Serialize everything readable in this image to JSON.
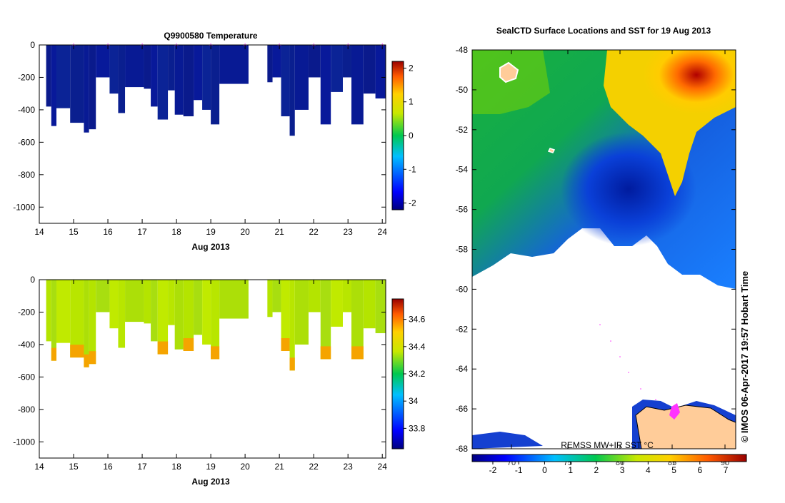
{
  "chart_data": [
    {
      "type": "heatmap",
      "variable": "temperature",
      "title": "Q9900580  Temperature",
      "xlabel": "Aug 2013",
      "x_ticks": [
        "14",
        "15",
        "16",
        "17",
        "18",
        "19",
        "20",
        "21",
        "22",
        "23",
        "24"
      ],
      "xlim": [
        14,
        24.1
      ],
      "ylim": [
        -1100,
        0
      ],
      "y_ticks": [
        "0",
        "-200",
        "-400",
        "-600",
        "-800",
        "-1000"
      ],
      "colorbar": {
        "range": [
          -2.2,
          2.2
        ],
        "ticks": [
          "2",
          "1",
          "0",
          "-1",
          "-2"
        ]
      },
      "profile_markers_day": [
        15.0,
        16.0,
        17.0,
        18.0,
        19.0,
        20.0,
        21.0,
        22.0,
        23.0,
        24.0
      ],
      "profiles": [
        {
          "start": 14.2,
          "end": 14.35,
          "depth": -380
        },
        {
          "start": 14.35,
          "end": 14.5,
          "depth": -500
        },
        {
          "start": 14.5,
          "end": 14.9,
          "depth": -390
        },
        {
          "start": 14.9,
          "end": 15.3,
          "depth": -480
        },
        {
          "start": 15.3,
          "end": 15.45,
          "depth": -540
        },
        {
          "start": 15.45,
          "end": 15.65,
          "depth": -520
        },
        {
          "start": 15.65,
          "end": 16.05,
          "depth": -200
        },
        {
          "start": 16.05,
          "end": 16.3,
          "depth": -300
        },
        {
          "start": 16.3,
          "end": 16.5,
          "depth": -420
        },
        {
          "start": 16.5,
          "end": 17.05,
          "depth": -260
        },
        {
          "start": 17.05,
          "end": 17.25,
          "depth": -270
        },
        {
          "start": 17.25,
          "end": 17.45,
          "depth": -380
        },
        {
          "start": 17.45,
          "end": 17.75,
          "depth": -460
        },
        {
          "start": 17.75,
          "end": 17.95,
          "depth": -280
        },
        {
          "start": 17.95,
          "end": 18.2,
          "depth": -430
        },
        {
          "start": 18.2,
          "end": 18.5,
          "depth": -440
        },
        {
          "start": 18.5,
          "end": 18.75,
          "depth": -340
        },
        {
          "start": 18.75,
          "end": 19.0,
          "depth": -400
        },
        {
          "start": 19.0,
          "end": 19.25,
          "depth": -490
        },
        {
          "start": 19.25,
          "end": 20.1,
          "depth": -240
        },
        {
          "start": 20.65,
          "end": 20.8,
          "depth": -230
        },
        {
          "start": 20.8,
          "end": 21.05,
          "depth": -200
        },
        {
          "start": 21.05,
          "end": 21.3,
          "depth": -440
        },
        {
          "start": 21.3,
          "end": 21.45,
          "depth": -560
        },
        {
          "start": 21.45,
          "end": 21.85,
          "depth": -400
        },
        {
          "start": 21.85,
          "end": 22.2,
          "depth": -200
        },
        {
          "start": 22.2,
          "end": 22.5,
          "depth": -490
        },
        {
          "start": 22.5,
          "end": 22.85,
          "depth": -290
        },
        {
          "start": 22.85,
          "end": 23.1,
          "depth": -200
        },
        {
          "start": 23.1,
          "end": 23.45,
          "depth": -490
        },
        {
          "start": 23.45,
          "end": 23.8,
          "depth": -300
        },
        {
          "start": 23.8,
          "end": 24.1,
          "depth": -330
        }
      ]
    },
    {
      "type": "heatmap",
      "variable": "salinity",
      "title": "",
      "xlabel": "Aug 2013",
      "x_ticks": [
        "14",
        "15",
        "16",
        "17",
        "18",
        "19",
        "20",
        "21",
        "22",
        "23",
        "24"
      ],
      "xlim": [
        14,
        24.1
      ],
      "ylim": [
        -1100,
        0
      ],
      "y_ticks": [
        "0",
        "-200",
        "-400",
        "-600",
        "-800",
        "-1000"
      ],
      "colorbar": {
        "range": [
          33.65,
          34.75
        ],
        "ticks": [
          "34.6",
          "34.4",
          "34.2",
          "34",
          "33.8"
        ]
      },
      "profiles_same_as_temperature": true
    },
    {
      "type": "heatmap",
      "variable": "sea surface temperature map",
      "title": "SealCTD Surface Locations and SST for 19 Aug 2013",
      "y_ticks": [
        "-48",
        "-50",
        "-52",
        "-54",
        "-56",
        "-58",
        "-60",
        "-62",
        "-64",
        "-66",
        "-68"
      ],
      "ylim": [
        -68,
        -48
      ],
      "x_ticks_top": [
        "70",
        "75",
        "80",
        "85",
        "90"
      ],
      "colorbar": {
        "range": [
          -2.8,
          7.8
        ],
        "ticks": [
          "-2",
          "-1",
          "0",
          "1",
          "2",
          "3",
          "4",
          "5",
          "6",
          "7"
        ]
      },
      "map_label": "REMSS MW+IR SST °C",
      "credit": "© IMOS 06-Apr-2017 19:57 Hobart Time"
    }
  ]
}
